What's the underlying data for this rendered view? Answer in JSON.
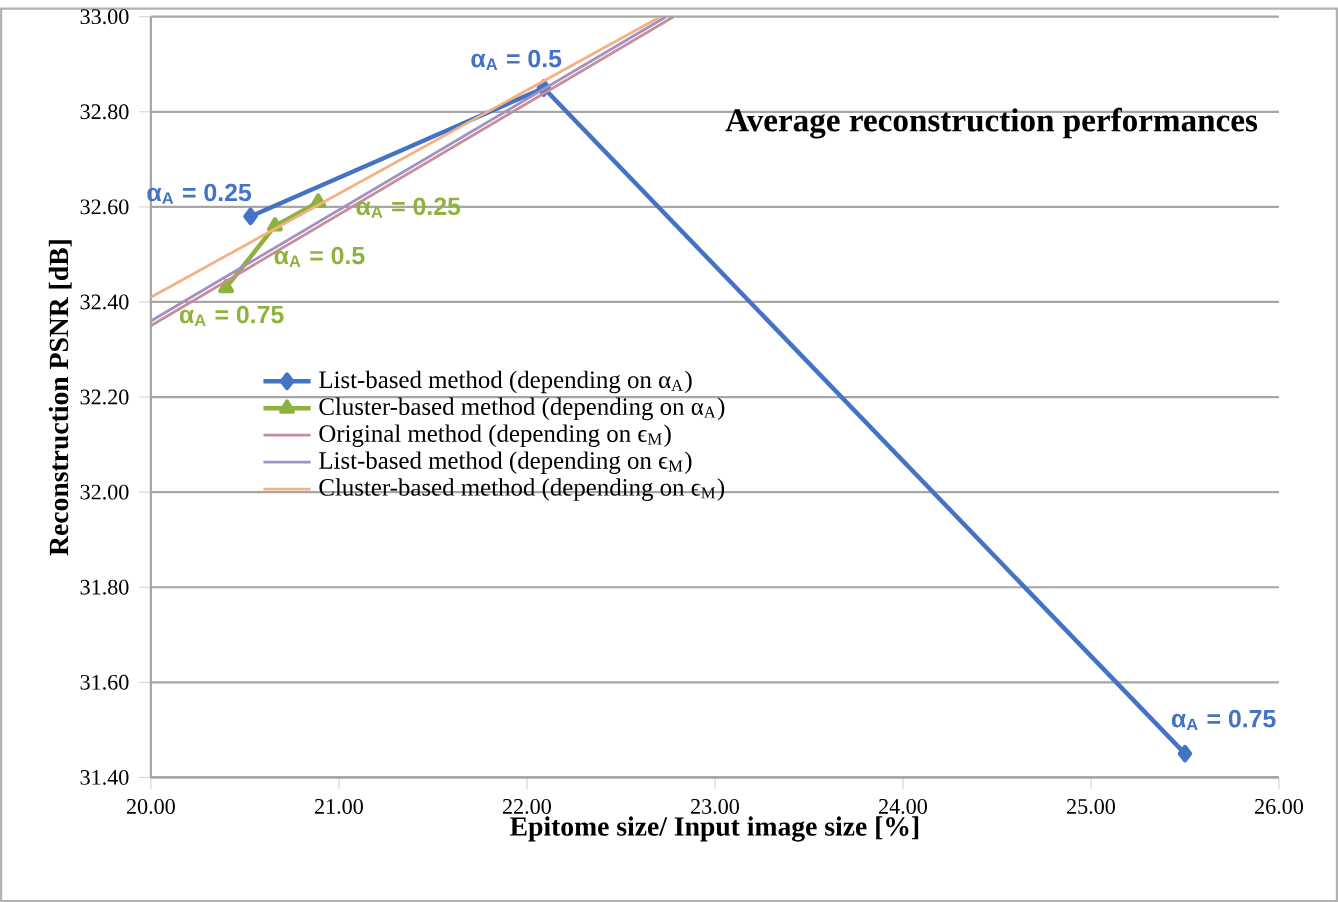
{
  "chart_data": {
    "type": "line",
    "title": "Average reconstruction performances",
    "xlabel": "Epitome size/ Input image size [%]",
    "ylabel": "Reconstruction PSNR [dB]",
    "xlim": [
      20,
      26
    ],
    "ylim": [
      31.4,
      33
    ],
    "xticks": [
      {
        "value": 20,
        "label": "20.00"
      },
      {
        "value": 21,
        "label": "21.00"
      },
      {
        "value": 22,
        "label": "22.00"
      },
      {
        "value": 23,
        "label": "23.00"
      },
      {
        "value": 24,
        "label": "24.00"
      },
      {
        "value": 25,
        "label": "25.00"
      },
      {
        "value": 26,
        "label": "26.00"
      }
    ],
    "yticks": [
      {
        "value": 31.4,
        "label": "31.40"
      },
      {
        "value": 31.6,
        "label": "31.60"
      },
      {
        "value": 31.8,
        "label": "31.80"
      },
      {
        "value": 32.0,
        "label": "32.00"
      },
      {
        "value": 32.2,
        "label": "32.20"
      },
      {
        "value": 32.4,
        "label": "32.40"
      },
      {
        "value": 32.6,
        "label": "32.60"
      },
      {
        "value": 32.8,
        "label": "32.80"
      },
      {
        "value": 33.0,
        "label": "33.00"
      }
    ],
    "grid": "y",
    "legend": "left",
    "series": [
      {
        "name": "List-based method (depending on α$_{A}$)",
        "color": "#4472c4",
        "marker": "diamond",
        "x": [
          20.53,
          22.09,
          25.5
        ],
        "values": [
          32.58,
          32.85,
          31.45
        ]
      },
      {
        "name": "Cluster-based method (depending on α$_{A}$)",
        "color": "#8fb23e",
        "marker": "triangle",
        "x": [
          20.4,
          20.66,
          20.89
        ],
        "values": [
          32.43,
          32.56,
          32.61
        ]
      },
      {
        "name": "Original method (depending on ϵ$_{M}$)",
        "color": "#c98d9a",
        "marker": "none",
        "x": [
          20,
          22.78
        ],
        "values": [
          32.35,
          33.0
        ]
      },
      {
        "name": "List-based method (depending on ϵ$_{M}$)",
        "color": "#a093c4",
        "marker": "none",
        "x": [
          20,
          22.74
        ],
        "values": [
          32.36,
          33.0
        ]
      },
      {
        "name": "Cluster-based method (depending on ϵ$_{M}$)",
        "color": "#f4b183",
        "marker": "none",
        "x": [
          20,
          22.71
        ],
        "values": [
          32.41,
          33.0
        ]
      }
    ],
    "annotations": [
      {
        "text": "α$_{A}$ = 0.25",
        "x": 20.53,
        "y": 32.58
      },
      {
        "text": "α$_{A}$ = 0.5",
        "x": 22.09,
        "y": 32.85
      },
      {
        "text": "α$_{A}$ = 0.75",
        "x": 25.5,
        "y": 31.45
      },
      {
        "text": "α$_{A}$ = 0.25",
        "x": 20.89,
        "y": 32.61
      },
      {
        "text": "α$_{A}$ = 0.5",
        "x": 20.66,
        "y": 32.56
      },
      {
        "text": "α$_{A}$ = 0.75",
        "x": 20.4,
        "y": 32.43
      }
    ]
  }
}
